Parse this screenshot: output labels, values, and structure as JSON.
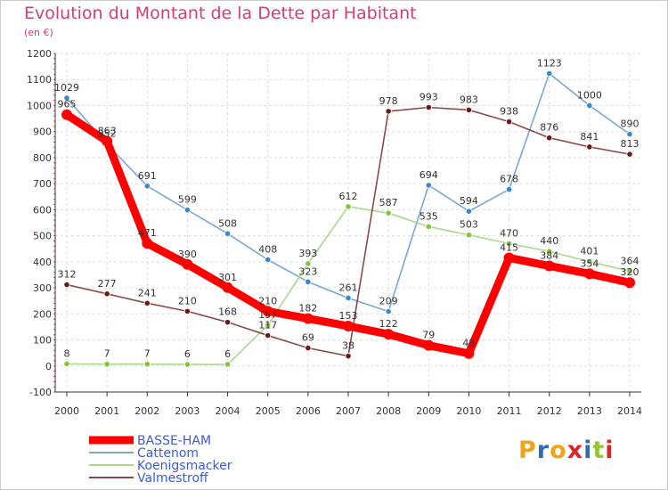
{
  "title": "Evolution du Montant de la Dette par Habitant",
  "subtitle": "(en €)",
  "logo": {
    "text": "Proxiti",
    "letters": [
      "P",
      "r",
      "o",
      "x",
      "i",
      "t",
      "i"
    ],
    "colors": [
      "#f0a31b",
      "#2e6db4",
      "#f0a31b",
      "#d62828",
      "#2e6db4",
      "#9ac438",
      "#d62828"
    ]
  },
  "chart_data": {
    "type": "line",
    "x": [
      "2000",
      "2001",
      "2002",
      "2003",
      "2004",
      "2005",
      "2006",
      "2007",
      "2008",
      "2009",
      "2010",
      "2011",
      "2012",
      "2013",
      "2014"
    ],
    "ylim": [
      -100,
      1200
    ],
    "y_ticks": [
      "-100",
      "0",
      "100",
      "200",
      "300",
      "400",
      "500",
      "600",
      "700",
      "800",
      "900",
      "1000",
      "1100",
      "1200"
    ],
    "legend_position": "bottom-left",
    "series": [
      {
        "name": "BASSE-HAM",
        "color": "#ff0000",
        "marker": "#ff0000",
        "thick": true,
        "values": [
          965,
          863,
          471,
          390,
          301,
          210,
          182,
          153,
          122,
          79,
          48,
          415,
          384,
          354,
          320
        ],
        "labels": [
          "965",
          "863",
          "471",
          "390",
          "301",
          "210",
          "182",
          "153",
          "122",
          "79",
          "48",
          "415",
          "384",
          "354",
          "320"
        ]
      },
      {
        "name": "Cattenom",
        "color": "#7aa7d6",
        "marker": "#3a88c8",
        "thick": false,
        "values": [
          1029,
          852,
          691,
          599,
          508,
          408,
          323,
          261,
          209,
          694,
          594,
          678,
          1123,
          1000,
          890
        ],
        "labels": [
          "1029",
          "852",
          "691",
          "599",
          "508",
          "408",
          "323",
          "261",
          "209",
          "694",
          "594",
          "678",
          "1123",
          "1000",
          "890"
        ]
      },
      {
        "name": "Koenigsmacker",
        "color": "#a8d98a",
        "marker": "#86c23f",
        "thick": false,
        "values": [
          8,
          7,
          7,
          6,
          6,
          157,
          393,
          612,
          587,
          535,
          503,
          470,
          440,
          401,
          364
        ],
        "labels": [
          "8",
          "7",
          "7",
          "6",
          "6",
          "157",
          "393",
          "612",
          "587",
          "535",
          "503",
          "470",
          "440",
          "401",
          "364"
        ]
      },
      {
        "name": "Valmestroff",
        "color": "#8b4a4a",
        "marker": "#6b1a1a",
        "thick": false,
        "values": [
          312,
          277,
          241,
          210,
          168,
          117,
          69,
          38,
          978,
          993,
          983,
          938,
          876,
          841,
          813
        ],
        "labels": [
          "312",
          "277",
          "241",
          "210",
          "168",
          "117",
          "69",
          "38",
          "978",
          "993",
          "983",
          "938",
          "876",
          "841",
          "813"
        ]
      }
    ]
  }
}
